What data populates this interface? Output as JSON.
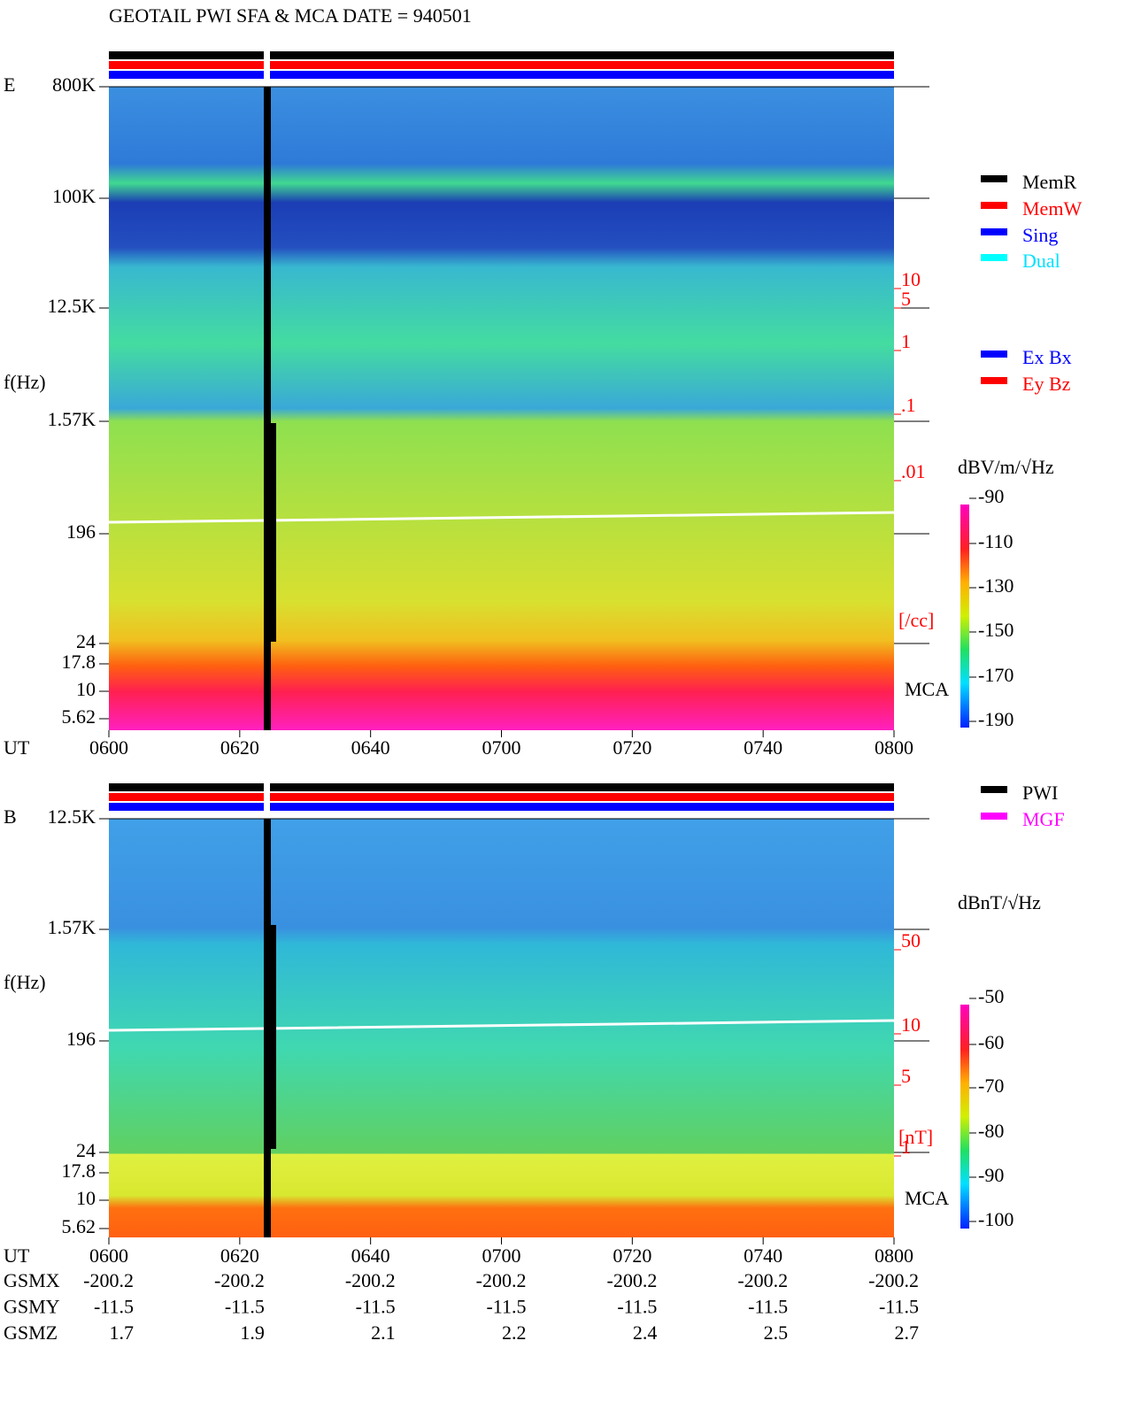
{
  "title": "GEOTAIL  PWI SFA & MCA   DATE = 940501",
  "panels": [
    {
      "label": "E",
      "ylabel": "f(Hz)",
      "yticks": [
        "800K",
        "100K",
        "12.5K",
        "1.57K",
        "196",
        "24",
        "17.8",
        "10",
        "5.62"
      ],
      "mca": "MCA",
      "xlabel": "UT",
      "xticks": [
        "0600",
        "0620",
        "0640",
        "0700",
        "0720",
        "0740",
        "0800"
      ],
      "right_ticks": [
        "10",
        "5",
        "1",
        ".1",
        ".01"
      ],
      "right_unit": "[/cc]",
      "colorbar": {
        "unit": "dBV/m/√Hz",
        "ticks": [
          -90,
          -110,
          -130,
          -150,
          -170,
          -190
        ]
      },
      "legend": [
        {
          "name": "MemR",
          "color": "#000000"
        },
        {
          "name": "MemW",
          "color": "#ff0000"
        },
        {
          "name": "Sing",
          "color": "#0000ff"
        },
        {
          "name": "Dual",
          "color": "#00ffff"
        },
        {
          "name": "Ex Bx",
          "color": "#0000ff"
        },
        {
          "name": "Ey Bz",
          "color": "#ff0000"
        }
      ]
    },
    {
      "label": "B",
      "ylabel": "f(Hz)",
      "yticks": [
        "12.5K",
        "1.57K",
        "196",
        "24",
        "17.8",
        "10",
        "5.62"
      ],
      "mca": "MCA",
      "xlabel": "UT",
      "xticks": [
        "0600",
        "0620",
        "0640",
        "0700",
        "0720",
        "0740",
        "0800"
      ],
      "right_ticks": [
        "50",
        "10",
        "5",
        "1"
      ],
      "right_unit": "[nT]",
      "colorbar": {
        "unit": "dBnT/√Hz",
        "ticks": [
          -50,
          -60,
          -70,
          -80,
          -90,
          -100
        ]
      },
      "legend": [
        {
          "name": "PWI",
          "color": "#000000"
        },
        {
          "name": "MGF",
          "color": "#ff00ff"
        }
      ]
    }
  ],
  "orbit": [
    {
      "name": "GSMX",
      "values": [
        "-200.2",
        "-200.2",
        "-200.2",
        "-200.2",
        "-200.2",
        "-200.2",
        "-200.2"
      ]
    },
    {
      "name": "GSMY",
      "values": [
        "-11.5",
        "-11.5",
        "-11.5",
        "-11.5",
        "-11.5",
        "-11.5",
        "-11.5"
      ]
    },
    {
      "name": "GSMZ",
      "values": [
        "1.7",
        "1.9",
        "2.1",
        "2.2",
        "2.4",
        "2.5",
        "2.7"
      ]
    }
  ]
}
